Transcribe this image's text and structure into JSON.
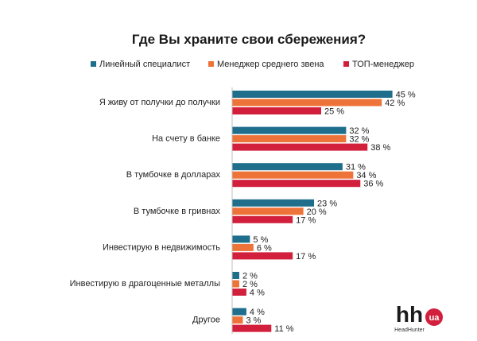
{
  "chart_data": {
    "type": "bar",
    "orientation": "horizontal",
    "title": "Где Вы храните свои сбережения?",
    "xlabel": "",
    "ylabel": "",
    "xlim": [
      0,
      50
    ],
    "grid": false,
    "legend_position": "top",
    "value_suffix": " %",
    "categories": [
      "Я живу от получки до получки",
      "На счету в банке",
      "В тумбочке в долларах",
      "В тумбочке в гривнах",
      "Инвестирую в недвижимость",
      "Инвестирую в драгоценные металлы",
      "Другое"
    ],
    "series": [
      {
        "name": "Линейный специалист",
        "color": "#1f6e8c",
        "values": [
          45,
          32,
          31,
          23,
          5,
          2,
          4
        ]
      },
      {
        "name": "Менеджер среднего звена",
        "color": "#ee7338",
        "values": [
          42,
          32,
          34,
          20,
          6,
          2,
          3
        ]
      },
      {
        "name": "ТОП-менеджер",
        "color": "#d21f3c",
        "values": [
          25,
          38,
          36,
          17,
          17,
          4,
          11
        ]
      }
    ]
  },
  "logo": {
    "main": "hh",
    "badge": "ua",
    "sub": "HeadHunter",
    "badge_color": "#d21f3c"
  }
}
